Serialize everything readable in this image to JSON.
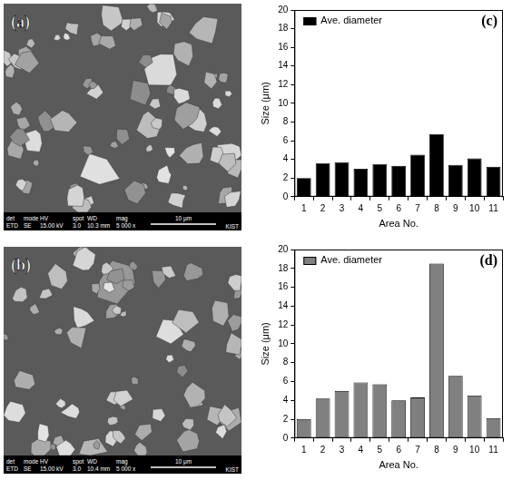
{
  "micrographs": [
    {
      "label": "(a)",
      "info_header": [
        "det",
        "mode",
        "HV",
        "spot",
        "WD",
        "mag"
      ],
      "info_values": [
        "ETD",
        "SE",
        "15.00 kV",
        "3.0",
        "10.3 mm",
        "5 000 x"
      ],
      "scale_bar": "10 μm",
      "lab": "KIST"
    },
    {
      "label": "(b)",
      "info_header": [
        "det",
        "mode",
        "HV",
        "spot",
        "WD",
        "mag"
      ],
      "info_values": [
        "ETD",
        "SE",
        "15.00 kV",
        "3.0",
        "10.4 mm",
        "5 000 x"
      ],
      "scale_bar": "10 μm",
      "lab": "KIST"
    }
  ],
  "chart_data": [
    {
      "type": "bar",
      "title": "(c)",
      "x_label": "Area No.",
      "y_label": "Size (μm)",
      "categories": [
        "1",
        "2",
        "3",
        "4",
        "5",
        "6",
        "7",
        "8",
        "9",
        "10",
        "11"
      ],
      "series": [
        {
          "name": "Ave. diameter",
          "color": "#000000",
          "values": [
            2.0,
            3.6,
            3.7,
            3.0,
            3.5,
            3.3,
            4.5,
            6.7,
            3.4,
            4.1,
            3.2
          ]
        }
      ],
      "ylim": [
        0,
        20
      ],
      "yticks": [
        0,
        2,
        4,
        6,
        8,
        10,
        12,
        14,
        16,
        18,
        20
      ],
      "grid": false,
      "legend": "upper left"
    },
    {
      "type": "bar",
      "title": "(d)",
      "x_label": "Area No.",
      "y_label": "Size (μm)",
      "categories": [
        "1",
        "2",
        "3",
        "4",
        "5",
        "6",
        "7",
        "8",
        "9",
        "10",
        "11"
      ],
      "series": [
        {
          "name": "Ave. diameter",
          "color": "#808080",
          "values": [
            2.0,
            4.2,
            5.0,
            5.9,
            5.7,
            4.0,
            4.3,
            18.5,
            6.6,
            4.5,
            2.1
          ]
        }
      ],
      "ylim": [
        0,
        20
      ],
      "yticks": [
        0,
        2,
        4,
        6,
        8,
        10,
        12,
        14,
        16,
        18,
        20
      ],
      "grid": false,
      "legend": "upper left"
    }
  ]
}
